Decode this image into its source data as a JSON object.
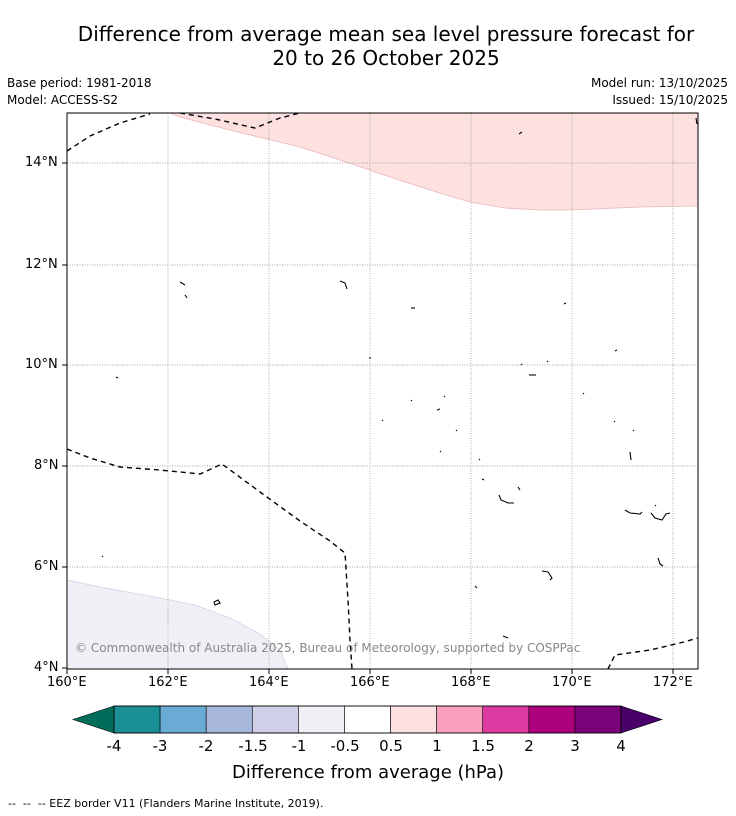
{
  "title_line1": "Difference from average mean sea level pressure forecast for",
  "title_line2": "20 to 26 October 2025",
  "base_period": "Base period: 1981-2018",
  "model": "Model: ACCESS-S2",
  "model_run": "Model run: 13/10/2025",
  "issued": "Issued: 15/10/2025",
  "credit": "© Commonwealth of Australia 2025, Bureau of Meteorology, supported by COSPPac",
  "map": {
    "lat_labels": [
      "14°N",
      "12°N",
      "10°N",
      "8°N",
      "6°N",
      "4°N"
    ],
    "lon_labels": [
      "160°E",
      "162°E",
      "164°E",
      "166°E",
      "168°E",
      "170°E",
      "172°E"
    ]
  },
  "colorbar": {
    "title": "Difference from average (hPa)",
    "tick_labels": [
      "-4",
      "-3",
      "-2",
      "-1.5",
      "-1",
      "-0.5",
      "0.5",
      "1",
      "1.5",
      "2",
      "3",
      "4"
    ],
    "colors": [
      "#1a9096",
      "#6aabd5",
      "#a8b8dc",
      "#cfd0e8",
      "#f2eef5",
      "#ffffff",
      "#fde0e0",
      "#f8a0bc",
      "#dd3ba1",
      "#ad017e",
      "#7a0177"
    ],
    "extend_low_color": "#016c59",
    "extend_high_color": "#49006a"
  },
  "legend": {
    "eez": "--  --  -- EEZ border V11 (Flanders Marine Institute, 2019)."
  }
}
